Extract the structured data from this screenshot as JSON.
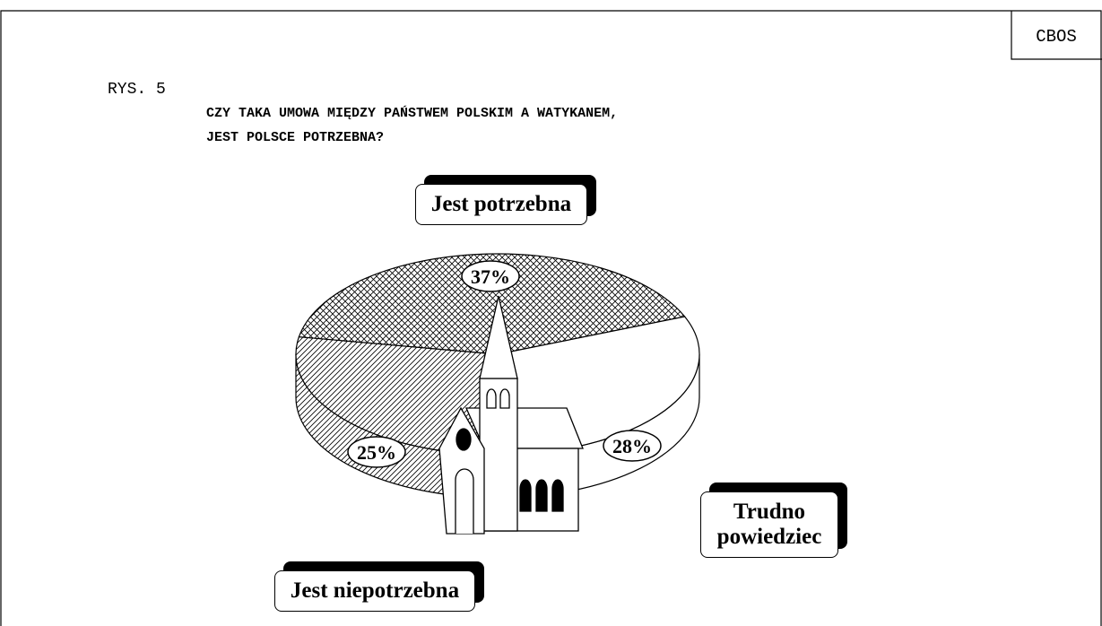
{
  "chart_data": {
    "type": "pie",
    "source": "CBOS",
    "figure_label": "RYS. 5",
    "title": "CZY TAKA UMOWA MIĘDZY PAŃSTWEM POLSKIM A WATYKANEM,",
    "subtitle": "JEST POLSCE POTRZEBNA?",
    "categories": [
      "Jest niepotrzebna",
      "Jest potrzebna",
      "Trudno powiedziec"
    ],
    "values": [
      25,
      37,
      28
    ],
    "value_labels": [
      "25%",
      "37%",
      "28%"
    ]
  }
}
